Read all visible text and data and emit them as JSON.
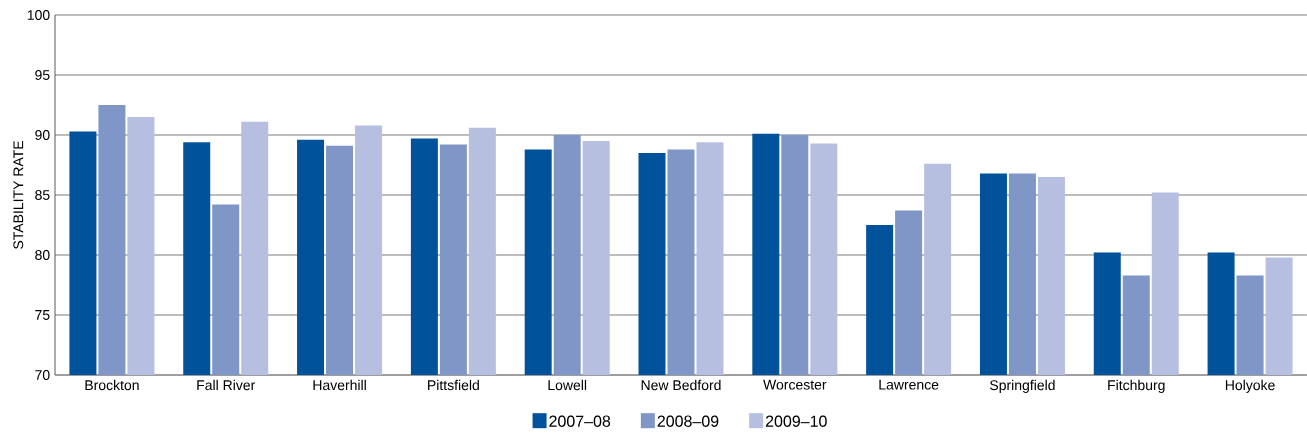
{
  "chart_data": {
    "type": "bar",
    "ylabel": "STABILITY RATE",
    "categories": [
      "Brockton",
      "Fall River",
      "Haverhill",
      "Pittsfield",
      "Lowell",
      "New Bedford",
      "Worcester",
      "Lawrence",
      "Springfield",
      "Fitchburg",
      "Holyoke"
    ],
    "series": [
      {
        "name": "2007–08",
        "color": "#00529b",
        "values": [
          90.3,
          89.4,
          89.6,
          89.7,
          88.8,
          88.5,
          90.1,
          82.5,
          86.8,
          80.2,
          80.2
        ]
      },
      {
        "name": "2008–09",
        "color": "#7f96c6",
        "values": [
          92.5,
          84.2,
          89.1,
          89.2,
          90.0,
          88.8,
          90.0,
          83.7,
          86.8,
          78.3,
          78.3
        ]
      },
      {
        "name": "2009–10",
        "color": "#b6bfdf",
        "values": [
          91.5,
          91.1,
          90.8,
          90.6,
          89.5,
          89.4,
          89.3,
          87.6,
          86.5,
          85.2,
          79.8
        ]
      }
    ],
    "ylim": [
      70,
      100
    ],
    "yticks": [
      70,
      75,
      80,
      85,
      90,
      95,
      100
    ],
    "grid": "y",
    "legend": "bottom"
  }
}
